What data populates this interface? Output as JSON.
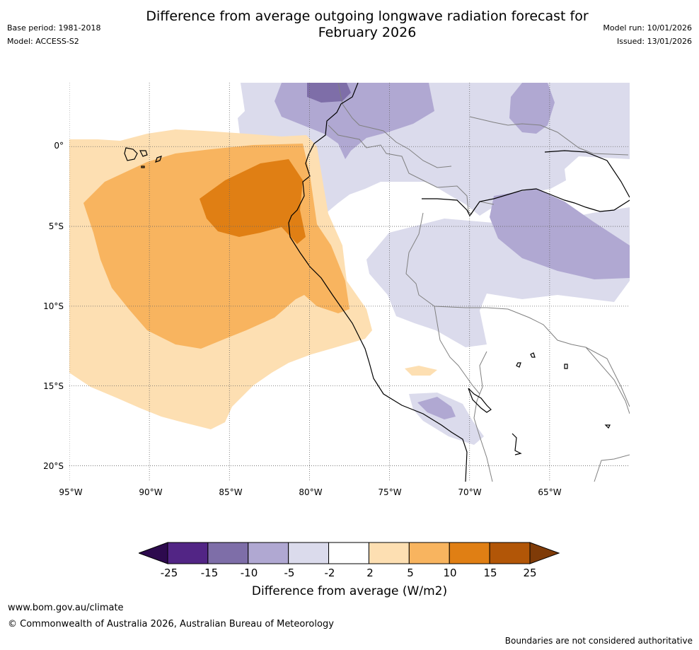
{
  "title": {
    "line1": "Difference from average outgoing longwave radiation forecast for",
    "line2": "February 2026"
  },
  "meta": {
    "base_period": "Base period: 1981-2018",
    "model": "Model: ACCESS-S2",
    "model_run": "Model run: 10/01/2026",
    "issued": "Issued: 13/01/2026"
  },
  "map": {
    "lon_range": [
      -95,
      -60
    ],
    "lat_range": [
      -21,
      4
    ],
    "lat_ticks": [
      {
        "value": 0,
        "label": "0°"
      },
      {
        "value": -5,
        "label": "5°S"
      },
      {
        "value": -10,
        "label": "10°S"
      },
      {
        "value": -15,
        "label": "15°S"
      },
      {
        "value": -20,
        "label": "20°S"
      }
    ],
    "lon_ticks": [
      {
        "value": -95,
        "label": "95°W"
      },
      {
        "value": -90,
        "label": "90°W"
      },
      {
        "value": -85,
        "label": "85°W"
      },
      {
        "value": -80,
        "label": "80°W"
      },
      {
        "value": -75,
        "label": "75°W"
      },
      {
        "value": -70,
        "label": "70°W"
      },
      {
        "value": -65,
        "label": "65°W"
      }
    ]
  },
  "colorbar": {
    "levels": [
      "-25",
      "-15",
      "-10",
      "-5",
      "-2",
      "2",
      "5",
      "10",
      "15",
      "25"
    ],
    "colors": {
      "below_min": "#2d0a4e",
      "bins": [
        "#522585",
        "#7e6ea8",
        "#b0a8d2",
        "#dbdbec",
        "#ffffff",
        "#fddfb2",
        "#f8b45f",
        "#e07f14",
        "#b25607"
      ],
      "above_max": "#7f3b08"
    },
    "title": "Difference from average (W/m2)"
  },
  "footer": {
    "website": "www.bom.gov.au/climate",
    "copyright": "© Commonwealth of Australia 2026, Australian Bureau of Meteorology",
    "disclaimer": "Boundaries are not considered authoritative"
  }
}
